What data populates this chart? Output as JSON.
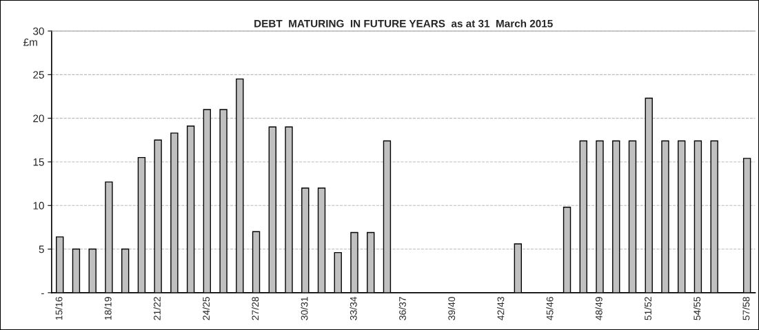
{
  "chart_data": {
    "type": "bar",
    "title": "DEBT  MATURING  IN FUTURE YEARS  as at 31  March 2015",
    "ylabel": "£m",
    "categories": [
      "15/16",
      null,
      null,
      "18/19",
      null,
      null,
      "21/22",
      null,
      null,
      "24/25",
      null,
      null,
      "27/28",
      null,
      null,
      "30/31",
      null,
      null,
      "33/34",
      null,
      null,
      "36/37",
      null,
      null,
      "39/40",
      null,
      null,
      "42/43",
      null,
      null,
      "45/46",
      null,
      null,
      "48/49",
      null,
      null,
      "51/52",
      null,
      null,
      "54/55",
      null,
      null,
      "57/58"
    ],
    "values": [
      6.4,
      5,
      5,
      12.7,
      5,
      15.5,
      17.5,
      18.3,
      19.1,
      21,
      21,
      24.5,
      7,
      19,
      19,
      12,
      12,
      4.6,
      6.9,
      6.9,
      17.4,
      null,
      null,
      null,
      null,
      null,
      null,
      null,
      5.6,
      null,
      null,
      9.8,
      17.4,
      17.4,
      17.4,
      17.4,
      22.3,
      17.4,
      17.4,
      17.4,
      17.4,
      null,
      15.4
    ],
    "color": "#c0c0c0",
    "ylim": [
      0,
      30
    ],
    "yticks": [
      {
        "value": 0,
        "label": "-"
      },
      5,
      10,
      15,
      20,
      25,
      30
    ],
    "grid": "y",
    "legend": false
  }
}
